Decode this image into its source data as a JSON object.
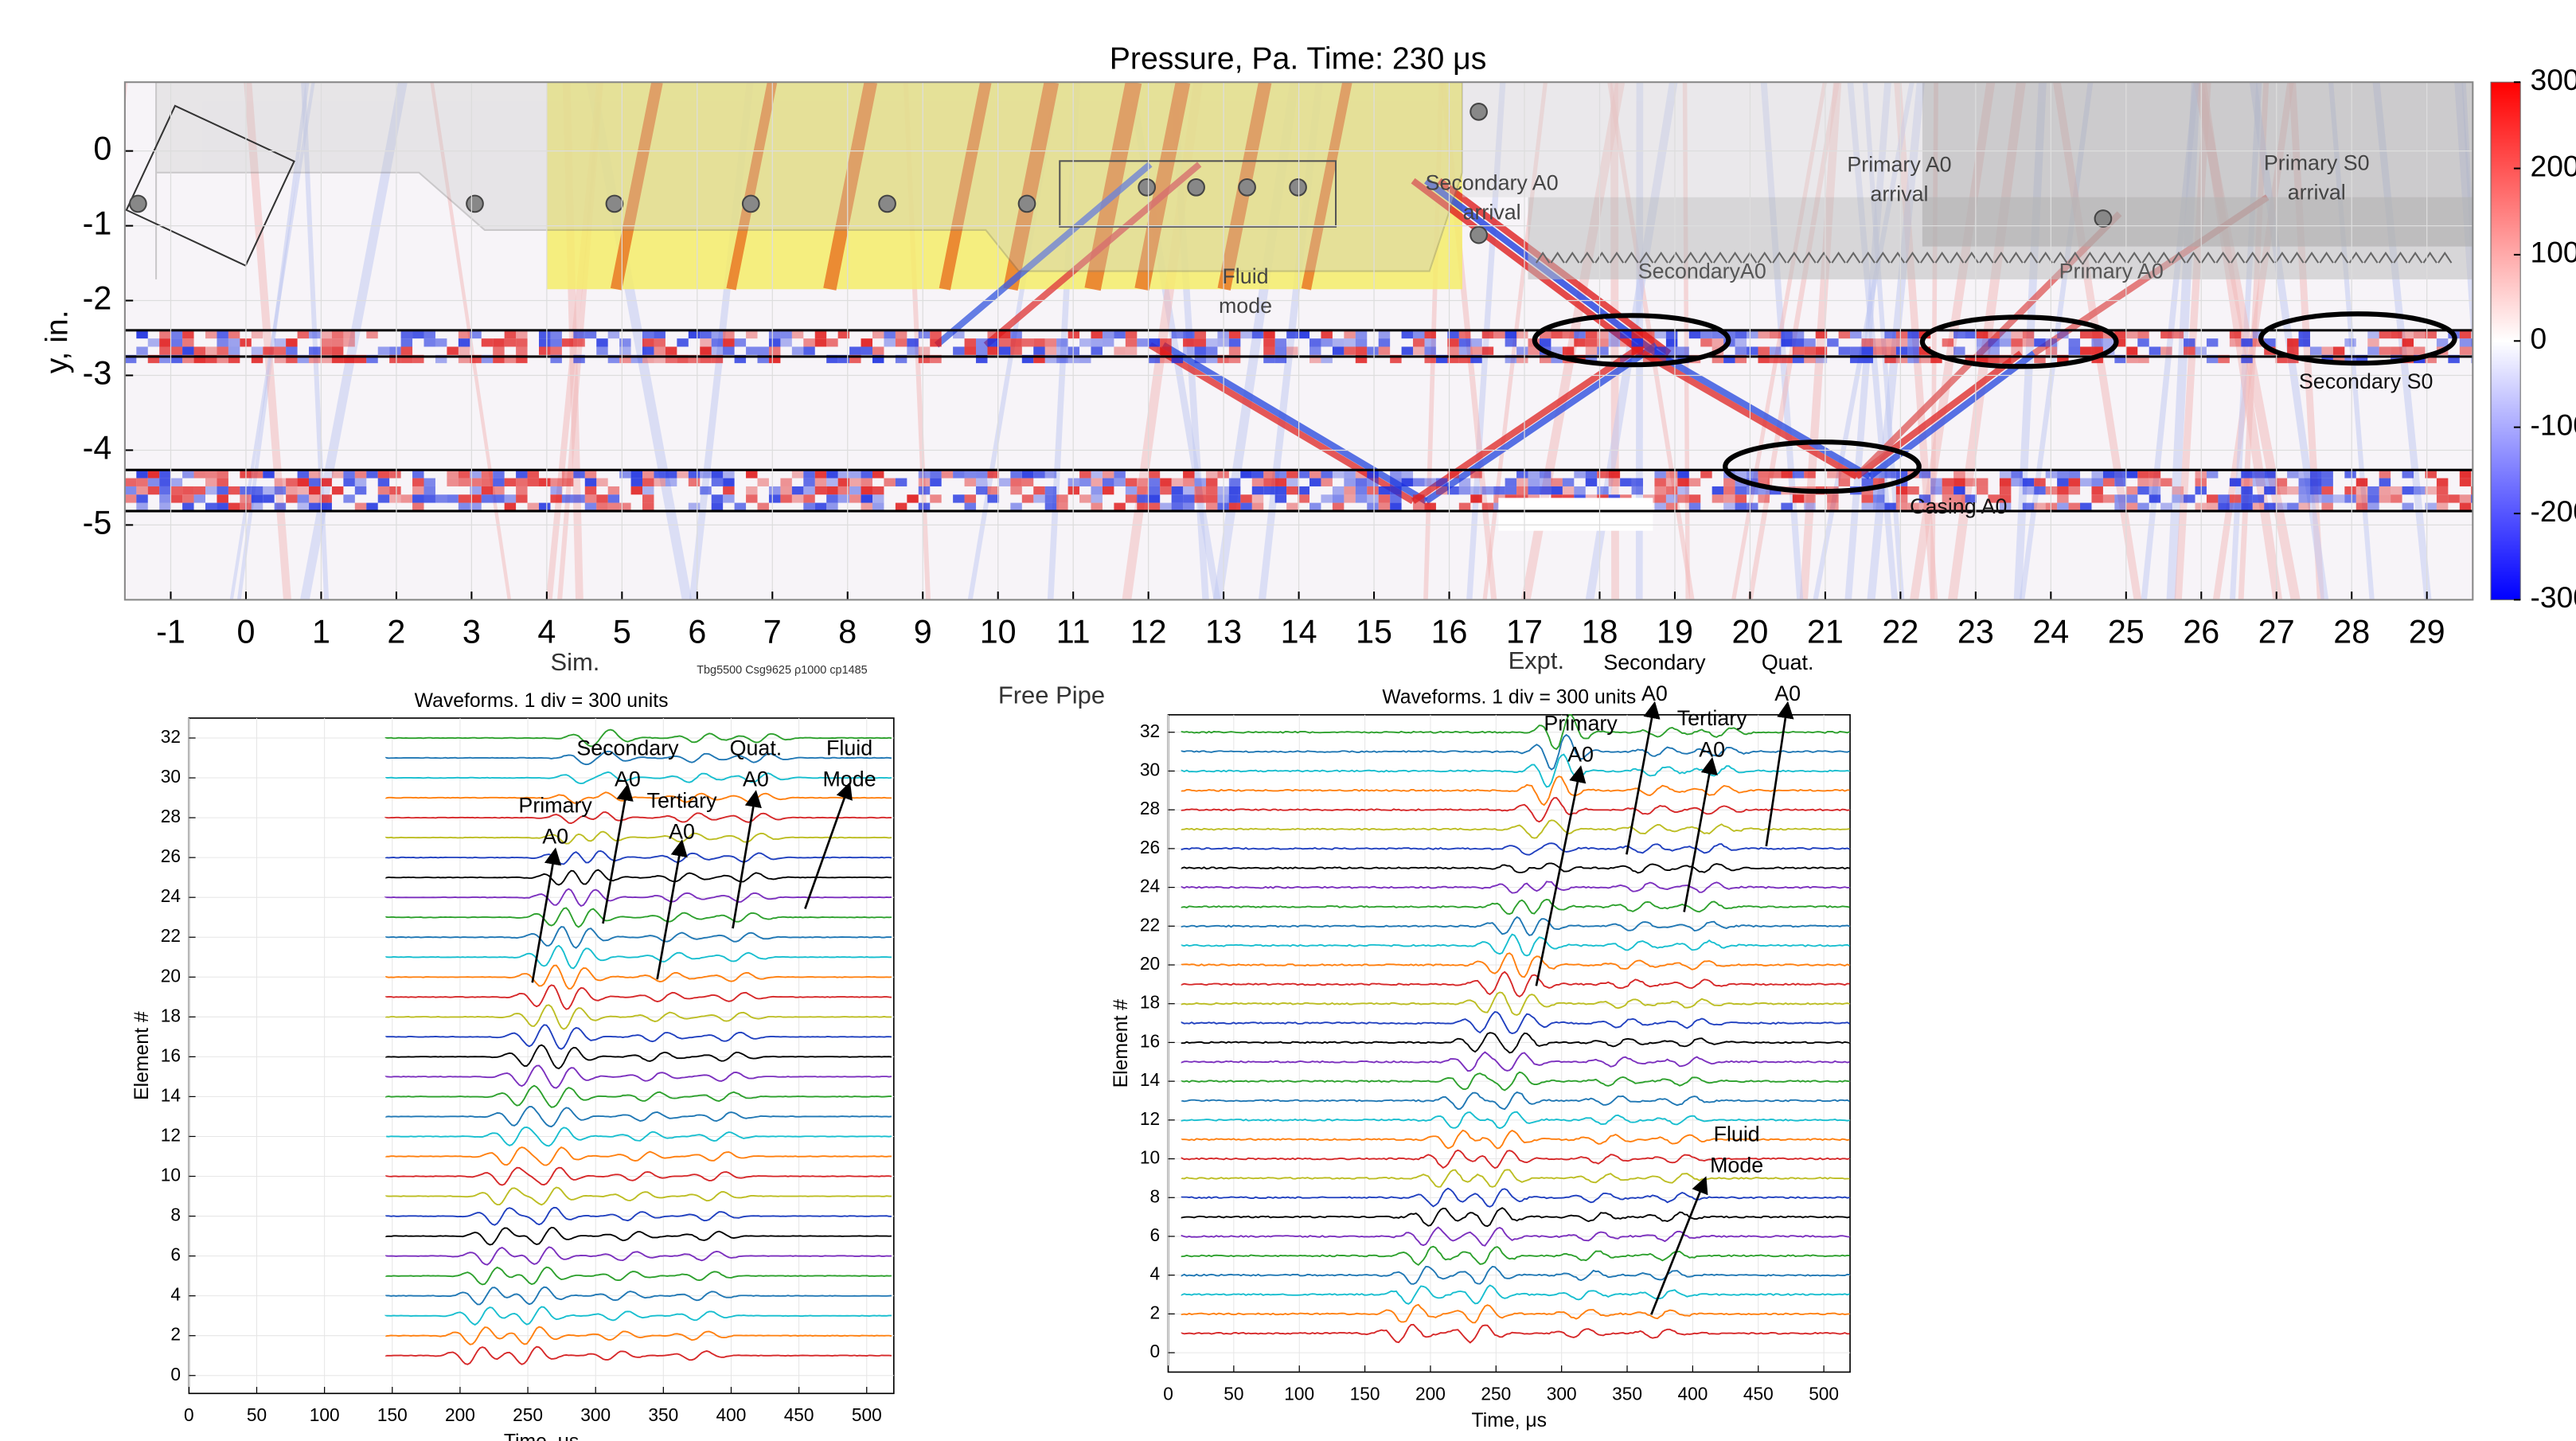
{
  "captions": {
    "sim": "Sim.",
    "params": "Tbg5500 Csg9625 ρ1000 cp1485",
    "free_pipe": "Free Pipe",
    "expt": "Expt."
  },
  "chart_data": [
    {
      "type": "heatmap",
      "title": "Pressure, Pa. Time: 230 μs",
      "ylabel": "y, in.",
      "xlim": [
        -1.61,
        29.61
      ],
      "xticks": [
        -1,
        0,
        1,
        2,
        3,
        4,
        5,
        6,
        7,
        8,
        9,
        10,
        11,
        12,
        13,
        14,
        15,
        16,
        17,
        18,
        19,
        20,
        21,
        22,
        23,
        24,
        25,
        26,
        27,
        28,
        29
      ],
      "ylim": [
        -6,
        0.92
      ],
      "yticks": [
        0,
        -1,
        -2,
        -3,
        -4,
        -5
      ],
      "colorbar": {
        "lim": [
          -300,
          300
        ],
        "ticks": [
          300,
          200,
          100,
          0,
          -100,
          -200,
          -300
        ],
        "colors": [
          "#0000ff",
          "#ffffff",
          "#ff0000"
        ]
      },
      "annotations": [
        [
          "Secondary A0",
          "arrival"
        ],
        [
          "Primary A0",
          "arrival"
        ],
        [
          "Primary S0",
          "arrival"
        ],
        [
          "SecondaryA0"
        ],
        [
          "Primary A0"
        ],
        [
          "Fluid",
          "mode"
        ],
        [
          "Secondary S0"
        ],
        [
          "Casing A0"
        ]
      ]
    },
    {
      "type": "waveform",
      "title": "Waveforms. 1 div = 300 units",
      "ylabel": "Element #",
      "xlabel": "Time, μs",
      "xlim": [
        0,
        520
      ],
      "xticks": [
        0,
        50,
        100,
        150,
        200,
        250,
        300,
        350,
        400,
        450,
        500
      ],
      "ylim": [
        -0.9,
        33
      ],
      "yticks": [
        0,
        2,
        4,
        6,
        8,
        10,
        12,
        14,
        16,
        18,
        20,
        22,
        24,
        26,
        28,
        30,
        32
      ],
      "trace_colors": [
        "#d62728",
        "#ff7f0e",
        "#17becf",
        "#1f77b4",
        "#2ca02c",
        "#7b2fbe",
        "#000000",
        "#1f3fbf",
        "#bcbd22"
      ],
      "annotations": [
        [
          "Secondary",
          "A0"
        ],
        [
          "Primary",
          "A0"
        ],
        [
          "Tertiary",
          "A0"
        ],
        [
          "Quat.",
          "A0"
        ],
        [
          "Fluid",
          "Mode"
        ]
      ]
    },
    {
      "type": "waveform",
      "title": "Waveforms. 1 div = 300 units",
      "ylabel": "Element #",
      "xlabel": "Time, μs",
      "xlim": [
        0,
        520
      ],
      "xticks": [
        0,
        50,
        100,
        150,
        200,
        250,
        300,
        350,
        400,
        450,
        500
      ],
      "ylim": [
        -1,
        32.9
      ],
      "yticks": [
        0,
        2,
        4,
        6,
        8,
        10,
        12,
        14,
        16,
        18,
        20,
        22,
        24,
        26,
        28,
        30,
        32
      ],
      "trace_colors": [
        "#d62728",
        "#ff7f0e",
        "#17becf",
        "#1f77b4",
        "#2ca02c",
        "#7b2fbe",
        "#000000",
        "#1f3fbf",
        "#bcbd22"
      ],
      "annotations": [
        [
          "Primary",
          "A0"
        ],
        [
          "Secondary",
          "A0"
        ],
        [
          "Tertiary",
          "A0"
        ],
        [
          "Quat.",
          "A0"
        ],
        [
          "Fluid",
          "Mode"
        ]
      ]
    }
  ]
}
